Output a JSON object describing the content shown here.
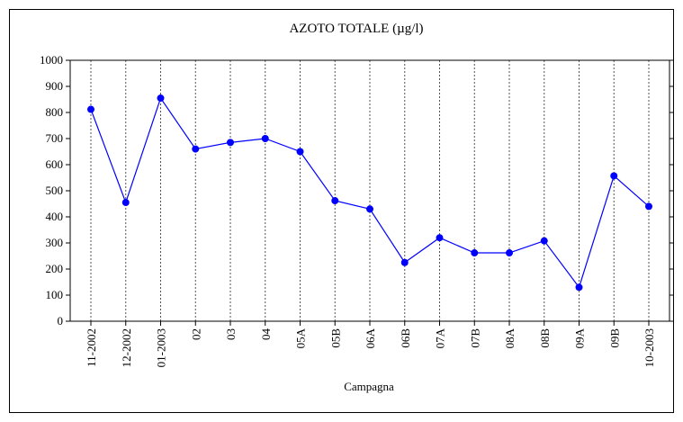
{
  "chart_data": {
    "type": "line",
    "title": "AZOTO TOTALE (µg/l)",
    "x_label": "Campagna",
    "categories": [
      "11-2002",
      "12-2002",
      "01-2003",
      "02",
      "03",
      "04",
      "05A",
      "05B",
      "06A",
      "06B",
      "07A",
      "07B",
      "08A",
      "08B",
      "09A",
      "09B",
      "10-2003"
    ],
    "series": [
      {
        "name": "AZOTO TOTALE",
        "color": "#0000ff",
        "values": [
          812,
          455,
          855,
          660,
          685,
          700,
          650,
          462,
          430,
          225,
          320,
          262,
          262,
          308,
          130,
          557,
          440
        ]
      }
    ],
    "ylim": [
      0,
      1000
    ],
    "yticks": [
      0,
      100,
      200,
      300,
      400,
      500,
      600,
      700,
      800,
      900,
      1000
    ],
    "grid": true
  }
}
